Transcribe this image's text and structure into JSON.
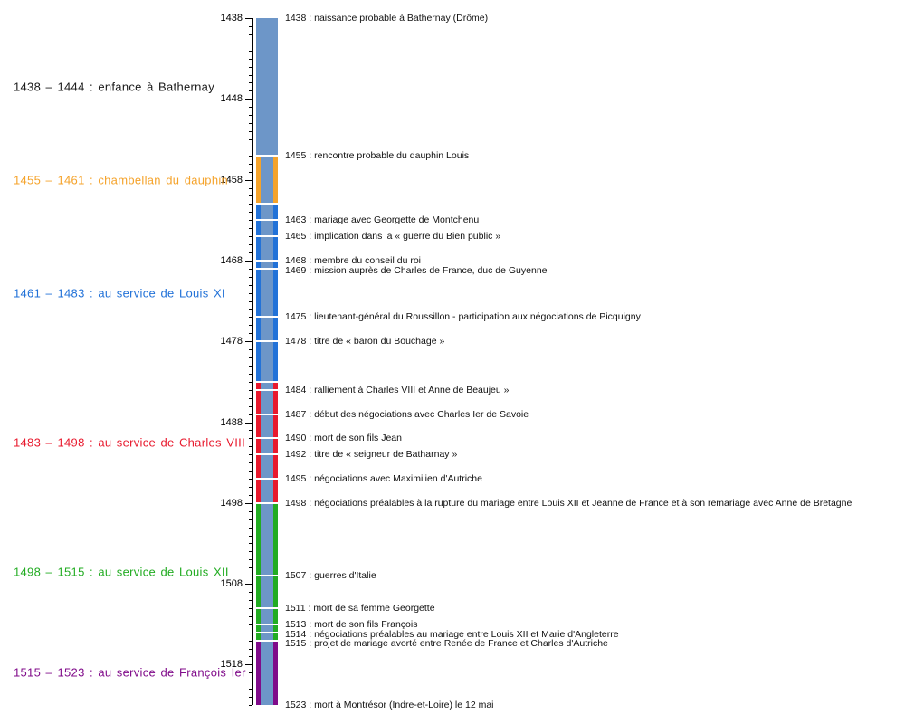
{
  "chart_data": {
    "type": "timeline",
    "orientation": "vertical",
    "axis": {
      "start_year": 1438,
      "end_year": 1523,
      "minor_tick_interval": 1,
      "major_tick_interval": 10,
      "labeled_tick_years": [
        1438,
        1448,
        1458,
        1468,
        1478,
        1488,
        1498,
        1508,
        1518
      ]
    },
    "colors": {
      "bar_fill": "#6D96C8",
      "separator": "#FFFFFF",
      "axis": "#000000",
      "event_text": "#111111"
    },
    "periods": [
      {
        "start": 1438,
        "end": 1444,
        "band": false,
        "color": "#1A1A1A",
        "label": "1438 – 1444 : enfance à Bathernay"
      },
      {
        "start": 1455,
        "end": 1461,
        "band": true,
        "color": "#F5A32B",
        "label": "1455 – 1461 : chambellan du dauphin"
      },
      {
        "start": 1461,
        "end": 1483,
        "band": true,
        "color": "#2272D8",
        "label": "1461 – 1483 : au service de Louis XI"
      },
      {
        "start": 1483,
        "end": 1498,
        "band": true,
        "color": "#E8192D",
        "label": "1483 – 1498 : au service de Charles VIII"
      },
      {
        "start": 1498,
        "end": 1515,
        "band": true,
        "color": "#22AC22",
        "label": "1498 – 1515 : au service de Louis XII"
      },
      {
        "start": 1515,
        "end": 1523,
        "band": true,
        "color": "#800B8A",
        "label": "1515 – 1523 : au service de François Ier"
      }
    ],
    "events": [
      {
        "year": 1438,
        "label": "1438 : naissance probable à Bathernay (Drôme)"
      },
      {
        "year": 1455,
        "label": "1455 : rencontre probable du dauphin Louis"
      },
      {
        "year": 1463,
        "label": "1463 : mariage avec Georgette de Montchenu"
      },
      {
        "year": 1465,
        "label": "1465 : implication dans la « guerre du Bien public »"
      },
      {
        "year": 1468,
        "label": "1468 : membre du conseil du roi"
      },
      {
        "year": 1469,
        "label": "1469 : mission auprès de Charles de France, duc de Guyenne"
      },
      {
        "year": 1475,
        "label": "1475 : lieutenant-général du Roussillon - participation aux négociations de Picquigny"
      },
      {
        "year": 1478,
        "label": "1478 : titre de « baron du Bouchage »"
      },
      {
        "year": 1484,
        "label": "1484 : ralliement à Charles VIII et Anne de Beaujeu »"
      },
      {
        "year": 1487,
        "label": "1487 : début des négociations avec Charles Ier de Savoie"
      },
      {
        "year": 1490,
        "label": "1490 : mort de son fils Jean"
      },
      {
        "year": 1492,
        "label": "1492 : titre de « seigneur de Batharnay »"
      },
      {
        "year": 1495,
        "label": "1495 : négociations avec Maximilien d'Autriche"
      },
      {
        "year": 1498,
        "label": "1498 : négociations préalables à la rupture du mariage entre Louis XII et Jeanne de France et à son remariage avec Anne de Bretagne"
      },
      {
        "year": 1507,
        "label": "1507 : guerres d'Italie"
      },
      {
        "year": 1511,
        "label": "1511 : mort de sa femme Georgette"
      },
      {
        "year": 1513,
        "label": "1513 : mort de son fils François"
      },
      {
        "year": 1514,
        "label": "1514 : négociations préalables au mariage entre Louis XII et Marie d'Angleterre"
      },
      {
        "year": 1515,
        "label": "1515 : projet de mariage avorté entre Renée de France et Charles d'Autriche"
      },
      {
        "year": 1523,
        "label": "1523 : mort à Montrésor (Indre-et-Loire) le 12 mai"
      }
    ]
  }
}
